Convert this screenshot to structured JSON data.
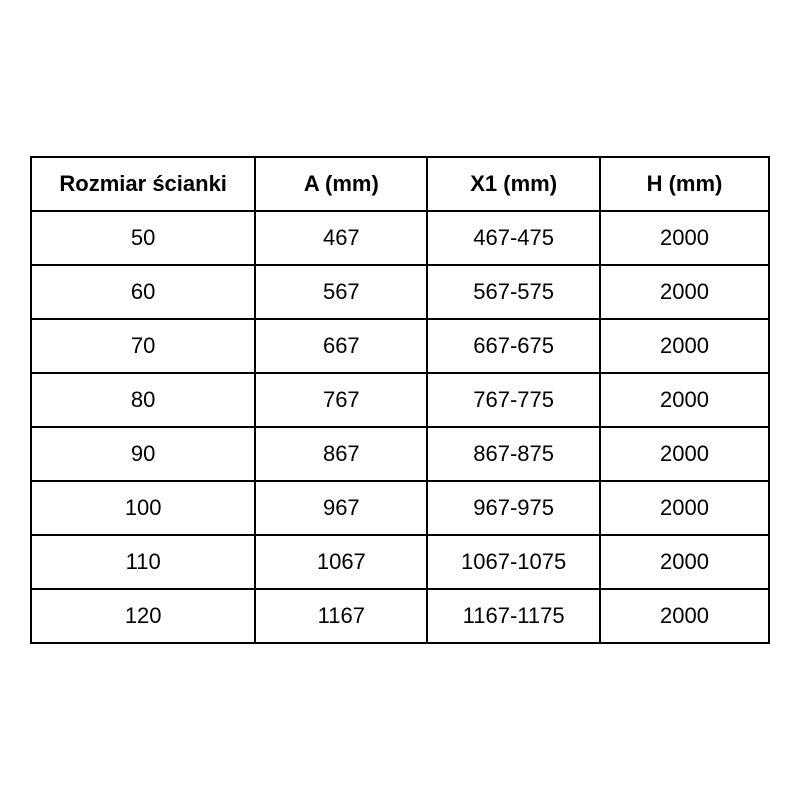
{
  "page": {
    "background_color": "#ffffff",
    "text_color": "#000000",
    "border_color": "#000000"
  },
  "table": {
    "headers": [
      "Rozmiar ścianki",
      "A (mm)",
      "X1 (mm)",
      "H (mm)"
    ],
    "rows": [
      [
        "50",
        "467",
        "467-475",
        "2000"
      ],
      [
        "60",
        "567",
        "567-575",
        "2000"
      ],
      [
        "70",
        "667",
        "667-675",
        "2000"
      ],
      [
        "80",
        "767",
        "767-775",
        "2000"
      ],
      [
        "90",
        "867",
        "867-875",
        "2000"
      ],
      [
        "100",
        "967",
        "967-975",
        "2000"
      ],
      [
        "110",
        "1067",
        "1067-1075",
        "2000"
      ],
      [
        "120",
        "1167",
        "1167-1175",
        "2000"
      ]
    ]
  },
  "chart_data": {
    "type": "table",
    "title": "",
    "columns": [
      "Rozmiar ścianki",
      "A (mm)",
      "X1 (mm)",
      "H (mm)"
    ],
    "rows": [
      [
        "50",
        "467",
        "467-475",
        "2000"
      ],
      [
        "60",
        "567",
        "567-575",
        "2000"
      ],
      [
        "70",
        "667",
        "667-675",
        "2000"
      ],
      [
        "80",
        "767",
        "767-775",
        "2000"
      ],
      [
        "90",
        "867",
        "867-875",
        "2000"
      ],
      [
        "100",
        "967",
        "967-975",
        "2000"
      ],
      [
        "110",
        "1067",
        "1067-1075",
        "2000"
      ],
      [
        "120",
        "1167",
        "1167-1175",
        "2000"
      ]
    ]
  }
}
